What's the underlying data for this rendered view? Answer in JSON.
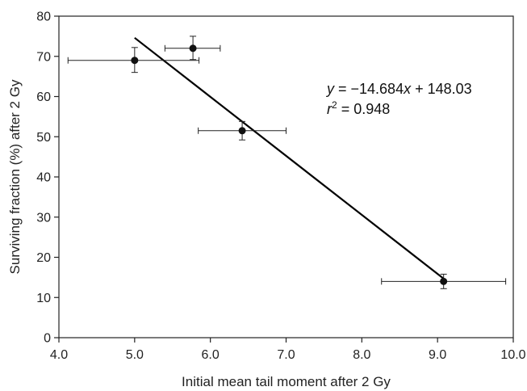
{
  "chart_data": {
    "type": "scatter",
    "title": "",
    "xlabel": "Initial mean tail moment after 2 Gy",
    "ylabel": "Surviving fraction (%) after 2 Gy",
    "xlim": [
      4.0,
      10.0
    ],
    "ylim": [
      0,
      80
    ],
    "x_ticks": [
      "4.0",
      "5.0",
      "6.0",
      "7.0",
      "8.0",
      "9.0",
      "10.0"
    ],
    "y_ticks": [
      "0",
      "10",
      "20",
      "30",
      "40",
      "50",
      "60",
      "70",
      "80"
    ],
    "grid": false,
    "points": [
      {
        "x": 5.0,
        "y": 69.0,
        "x_err_low": 4.12,
        "x_err_high": 5.85,
        "y_err_low": 66.0,
        "y_err_high": 72.2
      },
      {
        "x": 5.77,
        "y": 72.0,
        "x_err_low": 5.4,
        "x_err_high": 6.13,
        "y_err_low": 69.2,
        "y_err_high": 75.0
      },
      {
        "x": 6.42,
        "y": 51.5,
        "x_err_low": 5.84,
        "x_err_high": 7.0,
        "y_err_low": 49.2,
        "y_err_high": 53.8
      },
      {
        "x": 9.08,
        "y": 14.0,
        "x_err_low": 8.26,
        "x_err_high": 9.9,
        "y_err_low": 12.2,
        "y_err_high": 15.8
      }
    ],
    "fit_line": {
      "x_start": 5.0,
      "x_end": 9.08,
      "slope": -14.684,
      "intercept": 148.03
    },
    "annotation": {
      "equation": {
        "y_var": "y",
        "rhs_pre": " = −14.684",
        "x_var": "x",
        "rhs_post": " + 148.03"
      },
      "r2": {
        "r_var": "r",
        "exp": "2",
        "rhs": " = 0.948"
      }
    },
    "colors": {
      "marker": "#111111",
      "line": "#000000",
      "axis": "#222222"
    }
  }
}
